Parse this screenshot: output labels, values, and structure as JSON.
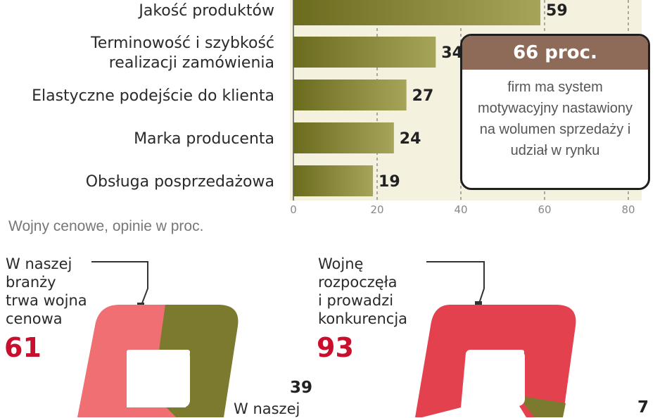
{
  "chart_data": [
    {
      "type": "bar",
      "categories": [
        "Jakość produktów",
        "Terminowość i szybkość\nrealizacji zamówienia",
        "Elastyczne podejście do klienta",
        "Marka producenta",
        "Obsługa posprzedażowa"
      ],
      "values": [
        59,
        34,
        27,
        24,
        19
      ],
      "xlim": [
        0,
        80
      ],
      "xticks": [
        "0",
        "20",
        "40",
        "60",
        "80"
      ],
      "grid": true,
      "orientation": "horizontal"
    },
    {
      "type": "pie",
      "title": "Wojny cenowe, opinie w  proc.",
      "label": "W naszej\nbranży\ntrwa wojna\ncenowa",
      "slices": [
        {
          "label": "W naszej\nbranży\ntrwa wojna\ncenowa",
          "value": 61
        },
        {
          "label": "W naszej",
          "value": 39
        }
      ]
    },
    {
      "type": "pie",
      "slices": [
        {
          "label": "Wojnę\nrozpoczęła\ni prowadzi\nkonkurencja",
          "value": 93
        },
        {
          "label": "",
          "value": 7
        }
      ]
    }
  ],
  "callout": {
    "headline": "66 proc.",
    "body": "firm ma system motywacyjny nastawiony na wolumen sprzedaży i udział w rynku"
  },
  "pie_section": {
    "title": "Wojny cenowe, opinie w  proc.",
    "pie1": {
      "text": "W naszej\nbranży\ntrwa wojna\ncenowa",
      "value": "61",
      "other_value": "39",
      "other_text": "W naszej"
    },
    "pie2": {
      "text": "Wojnę\nrozpoczęła\ni prowadzi\nkonkurencja",
      "value": "93",
      "other_value": "7"
    }
  },
  "colors": {
    "bar_dark": "#6b6b1e",
    "bar_light": "#a6a459",
    "panel_bg": "#f4f1de",
    "callout_head": "#8e6b58",
    "pie_red": "#e4414f",
    "pie_red_light": "#f08a8a",
    "pie_olive": "#7b7a2e",
    "accent_red": "#c8102e"
  }
}
